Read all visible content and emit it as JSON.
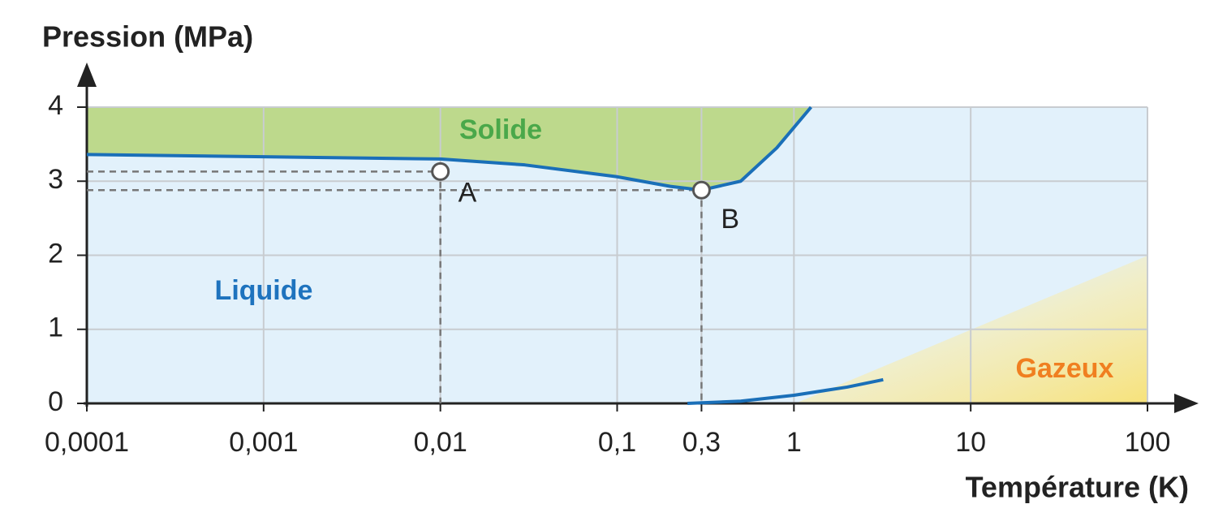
{
  "chart_data": {
    "type": "line",
    "y_label": "Pression (MPa)",
    "x_label": "Température (K)",
    "xscale": "log",
    "xlim": [
      0.0001,
      100
    ],
    "ylim": [
      0,
      4
    ],
    "xticks": [
      {
        "value": 0.0001,
        "label": "0,0001"
      },
      {
        "value": 0.001,
        "label": "0,001"
      },
      {
        "value": 0.01,
        "label": "0,01"
      },
      {
        "value": 0.1,
        "label": "0,1"
      },
      {
        "value": 0.3,
        "label": "0,3"
      },
      1,
      10,
      100
    ],
    "yticks": [
      0,
      1,
      2,
      3,
      4
    ],
    "grid": true,
    "series": [
      {
        "color": "#1a6fb8",
        "x": [
          0.0001,
          0.001,
          0.01,
          0.03,
          0.1,
          0.2,
          0.3,
          0.5,
          0.8,
          1.25
        ],
        "values": [
          3.36,
          3.33,
          3.3,
          3.22,
          3.06,
          2.93,
          2.88,
          3.0,
          3.45,
          4.0
        ]
      },
      {
        "color": "#1a6fb8",
        "x": [
          0.25,
          0.5,
          1,
          2,
          3.2
        ],
        "values": [
          0,
          0.03,
          0.11,
          0.22,
          0.32
        ]
      }
    ],
    "points": [
      {
        "label": "A",
        "x": 0.01,
        "y": 3.13
      },
      {
        "label": "B",
        "x": 0.3,
        "y": 2.88
      }
    ],
    "annotations": [
      {
        "text": "Solide",
        "color": "#4aa84a"
      },
      {
        "text": "Liquide",
        "color": "#1e73be"
      },
      {
        "text": "Gazeux",
        "color": "#f07f20"
      }
    ],
    "solid_color": "#bdd98c",
    "liquid_color": "#e2f1fb"
  }
}
